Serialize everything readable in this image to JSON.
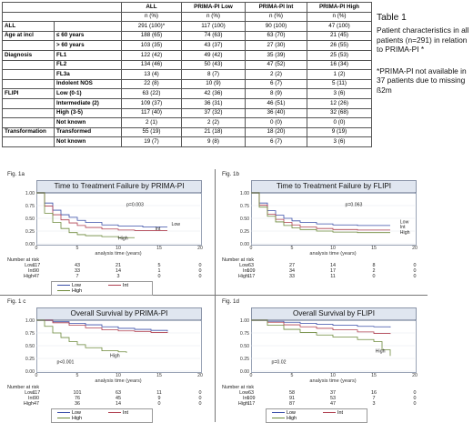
{
  "table": {
    "headers": [
      "",
      "ALL",
      "PRIMA-PI Low",
      "PRIMA-PI Int",
      "PRIMA-PI High"
    ],
    "subheaders": [
      "",
      "n (%)",
      "n (%)",
      "n (%)",
      "n (%)"
    ],
    "rows": [
      {
        "group": "ALL",
        "label": "",
        "v": [
          "291 (100)*",
          "117 (100)",
          "90 (100)",
          "47 (100)"
        ]
      },
      {
        "group": "Age at incl",
        "label": "≤ 60 years",
        "v": [
          "188 (65)",
          "74 (63)",
          "63 (70)",
          "21 (45)"
        ]
      },
      {
        "group": "",
        "label": "> 60 years",
        "v": [
          "103 (35)",
          "43 (37)",
          "27 (30)",
          "26 (55)"
        ]
      },
      {
        "group": "Diagnosis",
        "label": "FL1",
        "v": [
          "122 (42)",
          "49 (42)",
          "35 (39)",
          "25 (53)"
        ]
      },
      {
        "group": "",
        "label": "FL2",
        "v": [
          "134 (46)",
          "50 (43)",
          "47 (52)",
          "16 (34)"
        ]
      },
      {
        "group": "",
        "label": "FL3a",
        "v": [
          "13 (4)",
          "8 (7)",
          "2 (2)",
          "1 (2)"
        ]
      },
      {
        "group": "",
        "label": "Indolent NOS",
        "v": [
          "22 (8)",
          "10 (9)",
          "6 (7)",
          "5 (11)"
        ]
      },
      {
        "group": "FLIPI",
        "label": "Low (0-1)",
        "v": [
          "63 (22)",
          "42 (36)",
          "8 (9)",
          "3 (6)"
        ]
      },
      {
        "group": "",
        "label": "Intermediate (2)",
        "v": [
          "109 (37)",
          "36 (31)",
          "46 (51)",
          "12 (26)"
        ]
      },
      {
        "group": "",
        "label": "High (3-5)",
        "v": [
          "117 (40)",
          "37 (32)",
          "36 (40)",
          "32 (68)"
        ]
      },
      {
        "group": "",
        "label": "Not known",
        "v": [
          "2 (1)",
          "2 (2)",
          "0 (0)",
          "0 (0)"
        ]
      },
      {
        "group": "Transformation",
        "label": "Transformed",
        "v": [
          "55 (19)",
          "21 (18)",
          "18 (20)",
          "9 (19)"
        ]
      },
      {
        "group": "",
        "label": "Not known",
        "v": [
          "19 (7)",
          "9 (8)",
          "6 (7)",
          "3 (6)"
        ]
      }
    ]
  },
  "caption": {
    "title": "Table 1",
    "body": "Patient characteristics in all patients (n=291) in relation to PRIMA-PI *",
    "note": "*PRIMA-PI not available in 37 patients due to missing ß2m"
  },
  "colors": {
    "low": "#3a4fa8",
    "int": "#b04050",
    "high": "#6e8a3c"
  },
  "chart_data": [
    {
      "type": "line",
      "fig": "Fig. 1a",
      "title": "Time to Treatment Failure by PRIMA-PI",
      "pvalue": "p=0.003",
      "xlabel": "analysis time (years)",
      "xticks": [
        0,
        5,
        10,
        15,
        20
      ],
      "yticks": [
        "0.00",
        "0.25",
        "0.50",
        "0.75",
        "1.00"
      ],
      "xlim": [
        0,
        20
      ],
      "ylim": [
        0,
        1
      ],
      "series": [
        {
          "name": "Low",
          "key": "low",
          "points": [
            [
              0,
              1
            ],
            [
              1,
              0.8
            ],
            [
              2,
              0.66
            ],
            [
              3,
              0.57
            ],
            [
              4,
              0.52
            ],
            [
              5,
              0.46
            ],
            [
              6,
              0.42
            ],
            [
              8,
              0.37
            ],
            [
              10,
              0.35
            ],
            [
              13,
              0.33
            ],
            [
              16,
              0.33
            ]
          ]
        },
        {
          "name": "Int",
          "key": "int",
          "points": [
            [
              0,
              1
            ],
            [
              1,
              0.74
            ],
            [
              2,
              0.57
            ],
            [
              3,
              0.47
            ],
            [
              4,
              0.41
            ],
            [
              5,
              0.36
            ],
            [
              6,
              0.32
            ],
            [
              8,
              0.29
            ],
            [
              10,
              0.27
            ],
            [
              12,
              0.26
            ],
            [
              16,
              0.26
            ]
          ]
        },
        {
          "name": "High",
          "key": "high",
          "points": [
            [
              0,
              1
            ],
            [
              1,
              0.6
            ],
            [
              2,
              0.42
            ],
            [
              3,
              0.3
            ],
            [
              4,
              0.22
            ],
            [
              5,
              0.18
            ],
            [
              6,
              0.16
            ],
            [
              8,
              0.14
            ],
            [
              10,
              0.12
            ],
            [
              12,
              0.12
            ]
          ]
        }
      ],
      "curve_labels": [
        {
          "text": "Low",
          "x": 16.5,
          "y": 0.36
        },
        {
          "text": "Int",
          "x": 14.5,
          "y": 0.27
        },
        {
          "text": "High",
          "x": 10,
          "y": 0.08
        }
      ],
      "risk_title": "Number at risk",
      "risk": [
        {
          "label": "Low",
          "v": [
            "117",
            "43",
            "21",
            "5",
            "0"
          ]
        },
        {
          "label": "Int",
          "v": [
            "90",
            "33",
            "14",
            "1",
            "0"
          ]
        },
        {
          "label": "High",
          "v": [
            "47",
            "7",
            "3",
            "0",
            "0"
          ]
        }
      ],
      "legend": true
    },
    {
      "type": "line",
      "fig": "Fig. 1b",
      "title": "Time to Treatment Failure by FLIPI",
      "pvalue": "p=0.063",
      "xlabel": "analysis time (years)",
      "xticks": [
        0,
        5,
        10,
        15,
        20
      ],
      "yticks": [
        "0.00",
        "0.25",
        "0.50",
        "0.75",
        "1.00"
      ],
      "xlim": [
        0,
        20
      ],
      "ylim": [
        0,
        1
      ],
      "series": [
        {
          "name": "Low",
          "key": "low",
          "points": [
            [
              0,
              1
            ],
            [
              1,
              0.8
            ],
            [
              2,
              0.65
            ],
            [
              3,
              0.56
            ],
            [
              4,
              0.5
            ],
            [
              5,
              0.45
            ],
            [
              6,
              0.42
            ],
            [
              8,
              0.39
            ],
            [
              10,
              0.37
            ],
            [
              13,
              0.36
            ],
            [
              17,
              0.36
            ]
          ]
        },
        {
          "name": "Int",
          "key": "int",
          "points": [
            [
              0,
              1
            ],
            [
              1,
              0.76
            ],
            [
              2,
              0.58
            ],
            [
              3,
              0.48
            ],
            [
              4,
              0.42
            ],
            [
              5,
              0.37
            ],
            [
              6,
              0.33
            ],
            [
              8,
              0.3
            ],
            [
              10,
              0.28
            ],
            [
              13,
              0.27
            ],
            [
              17,
              0.27
            ]
          ]
        },
        {
          "name": "High",
          "key": "high",
          "points": [
            [
              0,
              1
            ],
            [
              1,
              0.72
            ],
            [
              2,
              0.54
            ],
            [
              3,
              0.43
            ],
            [
              4,
              0.36
            ],
            [
              5,
              0.31
            ],
            [
              6,
              0.28
            ],
            [
              8,
              0.25
            ],
            [
              10,
              0.23
            ],
            [
              13,
              0.22
            ],
            [
              17,
              0.22
            ]
          ]
        }
      ],
      "curve_labels": [
        {
          "text": "Low",
          "x": 18.2,
          "y": 0.4
        },
        {
          "text": "Int",
          "x": 18.2,
          "y": 0.3
        },
        {
          "text": "High",
          "x": 18.2,
          "y": 0.2
        }
      ],
      "risk_title": "Number at risk",
      "risk": [
        {
          "label": "Low",
          "v": [
            "63",
            "27",
            "14",
            "8",
            "0"
          ]
        },
        {
          "label": "Int",
          "v": [
            "109",
            "34",
            "17",
            "2",
            "0"
          ]
        },
        {
          "label": "High",
          "v": [
            "117",
            "33",
            "11",
            "0",
            "0"
          ]
        }
      ],
      "legend": false
    },
    {
      "type": "line",
      "fig": "Fig. 1 c",
      "title": "Overall Survival by PRIMA-PI",
      "pvalue": "p<0.001",
      "xlabel": "analysis time (years)",
      "xticks": [
        0,
        5,
        10,
        15,
        20
      ],
      "yticks": [
        "0.00",
        "0.25",
        "0.50",
        "0.75",
        "1.00"
      ],
      "xlim": [
        0,
        20
      ],
      "ylim": [
        0,
        1
      ],
      "series": [
        {
          "name": "Low",
          "key": "low",
          "points": [
            [
              0,
              1
            ],
            [
              2,
              0.97
            ],
            [
              4,
              0.94
            ],
            [
              6,
              0.91
            ],
            [
              8,
              0.87
            ],
            [
              10,
              0.84
            ],
            [
              12,
              0.82
            ],
            [
              14,
              0.8
            ],
            [
              16,
              0.78
            ]
          ]
        },
        {
          "name": "Int",
          "key": "int",
          "points": [
            [
              0,
              1
            ],
            [
              2,
              0.95
            ],
            [
              4,
              0.9
            ],
            [
              6,
              0.85
            ],
            [
              8,
              0.81
            ],
            [
              10,
              0.79
            ],
            [
              12,
              0.78
            ],
            [
              14,
              0.76
            ],
            [
              16,
              0.75
            ]
          ]
        },
        {
          "name": "High",
          "key": "high",
          "points": [
            [
              0,
              1
            ],
            [
              1,
              0.88
            ],
            [
              2,
              0.75
            ],
            [
              3,
              0.66
            ],
            [
              4,
              0.58
            ],
            [
              5,
              0.52
            ],
            [
              6,
              0.46
            ],
            [
              8,
              0.4
            ],
            [
              10,
              0.38
            ],
            [
              11,
              0.36
            ]
          ]
        }
      ],
      "curve_labels": [
        {
          "text": "High",
          "x": 9,
          "y": 0.28
        }
      ],
      "risk_title": "Number at risk",
      "risk": [
        {
          "label": "Low",
          "v": [
            "117",
            "101",
            "63",
            "11",
            "0"
          ]
        },
        {
          "label": "Int",
          "v": [
            "90",
            "76",
            "45",
            "9",
            "0"
          ]
        },
        {
          "label": "High",
          "v": [
            "47",
            "36",
            "14",
            "0",
            "0"
          ]
        }
      ],
      "legend": true
    },
    {
      "type": "line",
      "fig": "Fig. 1d",
      "title": "Overall Survival by FLIPI",
      "pvalue": "p=0.02",
      "xlabel": "analysis time (years)",
      "xticks": [
        0,
        5,
        10,
        15,
        20
      ],
      "yticks": [
        "0.00",
        "0.25",
        "0.50",
        "0.75",
        "1.00"
      ],
      "xlim": [
        0,
        20
      ],
      "ylim": [
        0,
        1
      ],
      "series": [
        {
          "name": "Low",
          "key": "low",
          "points": [
            [
              0,
              1
            ],
            [
              2,
              0.98
            ],
            [
              4,
              0.96
            ],
            [
              6,
              0.94
            ],
            [
              8,
              0.92
            ],
            [
              10,
              0.9
            ],
            [
              13,
              0.88
            ],
            [
              15,
              0.87
            ],
            [
              17,
              0.86
            ]
          ]
        },
        {
          "name": "Int",
          "key": "int",
          "points": [
            [
              0,
              1
            ],
            [
              2,
              0.96
            ],
            [
              4,
              0.91
            ],
            [
              6,
              0.87
            ],
            [
              8,
              0.84
            ],
            [
              10,
              0.81
            ],
            [
              13,
              0.77
            ],
            [
              15,
              0.74
            ],
            [
              17,
              0.73
            ]
          ]
        },
        {
          "name": "High",
          "key": "high",
          "points": [
            [
              0,
              1
            ],
            [
              2,
              0.9
            ],
            [
              4,
              0.82
            ],
            [
              6,
              0.76
            ],
            [
              8,
              0.71
            ],
            [
              10,
              0.67
            ],
            [
              13,
              0.62
            ],
            [
              15,
              0.58
            ],
            [
              16,
              0.42
            ],
            [
              17,
              0.3
            ]
          ]
        }
      ],
      "curve_labels": [
        {
          "text": "High",
          "x": 15.2,
          "y": 0.37
        }
      ],
      "risk_title": "Number at risk",
      "risk": [
        {
          "label": "Low",
          "v": [
            "63",
            "58",
            "37",
            "16",
            "0"
          ]
        },
        {
          "label": "Int",
          "v": [
            "109",
            "91",
            "53",
            "7",
            "0"
          ]
        },
        {
          "label": "High",
          "v": [
            "117",
            "87",
            "47",
            "3",
            "0"
          ]
        }
      ],
      "legend": true
    }
  ]
}
